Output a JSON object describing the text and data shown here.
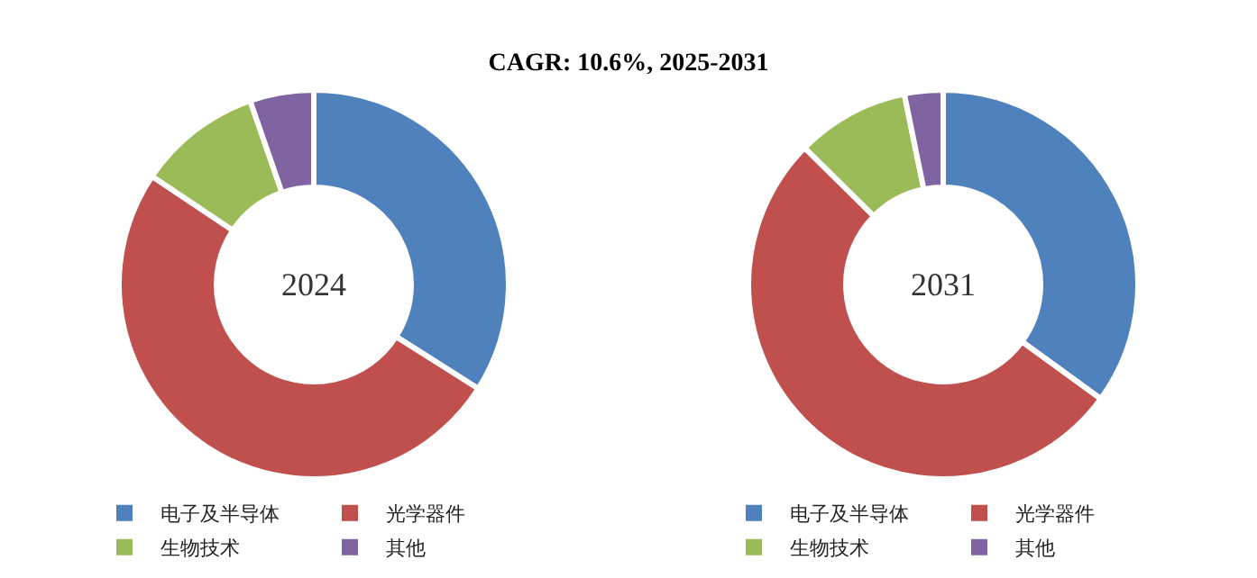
{
  "chart_data": [
    {
      "type": "donut",
      "title": "CAGR: 10.6%, 2025-2031",
      "annotations": [
        "2024"
      ],
      "categories": [
        "电子及半导体",
        "光学器件",
        "生物技术",
        "其他"
      ],
      "values": [
        34,
        50.4,
        10.3,
        5.3
      ],
      "colors": [
        "#4f81bd",
        "#c0504d",
        "#9bbb59",
        "#8064a2"
      ],
      "legend": "bottom"
    },
    {
      "type": "donut",
      "annotations": [
        "2031"
      ],
      "categories": [
        "电子及半导体",
        "光学器件",
        "生物技术",
        "其他"
      ],
      "values": [
        35,
        52.4,
        9.4,
        3.2
      ],
      "colors": [
        "#4f81bd",
        "#c0504d",
        "#9bbb59",
        "#8064a2"
      ],
      "legend": "bottom"
    }
  ]
}
